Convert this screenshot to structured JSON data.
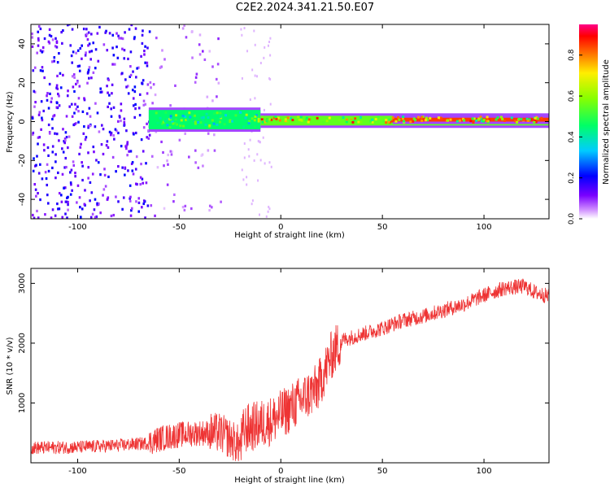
{
  "title": "C2E2.2024.341.21.50.E07",
  "colors": {
    "signal_line": "#ee3333",
    "axes": "#000000",
    "spectrogram_background": "#ffffff"
  },
  "chart_data": [
    {
      "type": "heatmap",
      "xlabel": "Height of straight line (km)",
      "ylabel": "Frequency (Hz)",
      "xlim": [
        -123,
        132
      ],
      "ylim": [
        -50,
        50
      ],
      "x_ticks": [
        -100,
        -50,
        0,
        50,
        100
      ],
      "y_ticks": [
        -40,
        -20,
        0,
        20,
        40
      ],
      "colormap": "rainbow (magenta-blue-cyan-green-yellow-red-pink)",
      "colorbar": {
        "label": "Normalized spectral amplitude",
        "range": [
          0,
          0.95
        ],
        "ticks": [
          0.0,
          0.2,
          0.4,
          0.6,
          0.8
        ]
      },
      "description_regions": [
        {
          "x_range": [
            -123,
            -65
          ],
          "freq_range": [
            -50,
            50
          ],
          "amplitude": 0.15
        },
        {
          "x_range": [
            -65,
            -20
          ],
          "freq_range": [
            -50,
            50
          ],
          "amplitude": 0.05
        },
        {
          "x_range": [
            -65,
            -10
          ],
          "freq_range": [
            -4,
            6
          ],
          "amplitude": 0.45
        },
        {
          "x_range": [
            -10,
            132
          ],
          "freq_range": [
            -2,
            3
          ],
          "amplitude": 0.55
        },
        {
          "x_range": [
            55,
            132
          ],
          "freq_range": [
            0,
            2
          ],
          "amplitude": 0.85
        }
      ],
      "grid": false
    },
    {
      "type": "line",
      "xlabel": "Height of straight line (km)",
      "ylabel": "SNR (10 * v/v)",
      "xlim": [
        -123,
        132
      ],
      "ylim": [
        0,
        3250
      ],
      "x_ticks": [
        -100,
        -50,
        0,
        50,
        100
      ],
      "y_ticks": [
        1000,
        2000,
        3000
      ],
      "grid": false,
      "series": [
        {
          "x": [
            -123,
            -100,
            -80,
            -65,
            -60,
            -50,
            -40,
            -30,
            -25,
            -20,
            -18,
            -12,
            -5,
            0,
            10,
            18,
            25,
            30,
            40,
            50,
            60,
            70,
            80,
            90,
            100,
            110,
            120,
            125,
            132
          ],
          "y": [
            250,
            260,
            290,
            330,
            400,
            470,
            500,
            500,
            400,
            280,
            560,
            620,
            700,
            800,
            1050,
            1250,
            1800,
            2050,
            2150,
            2250,
            2380,
            2450,
            2550,
            2650,
            2800,
            2920,
            2950,
            2850,
            2780
          ]
        }
      ]
    }
  ]
}
